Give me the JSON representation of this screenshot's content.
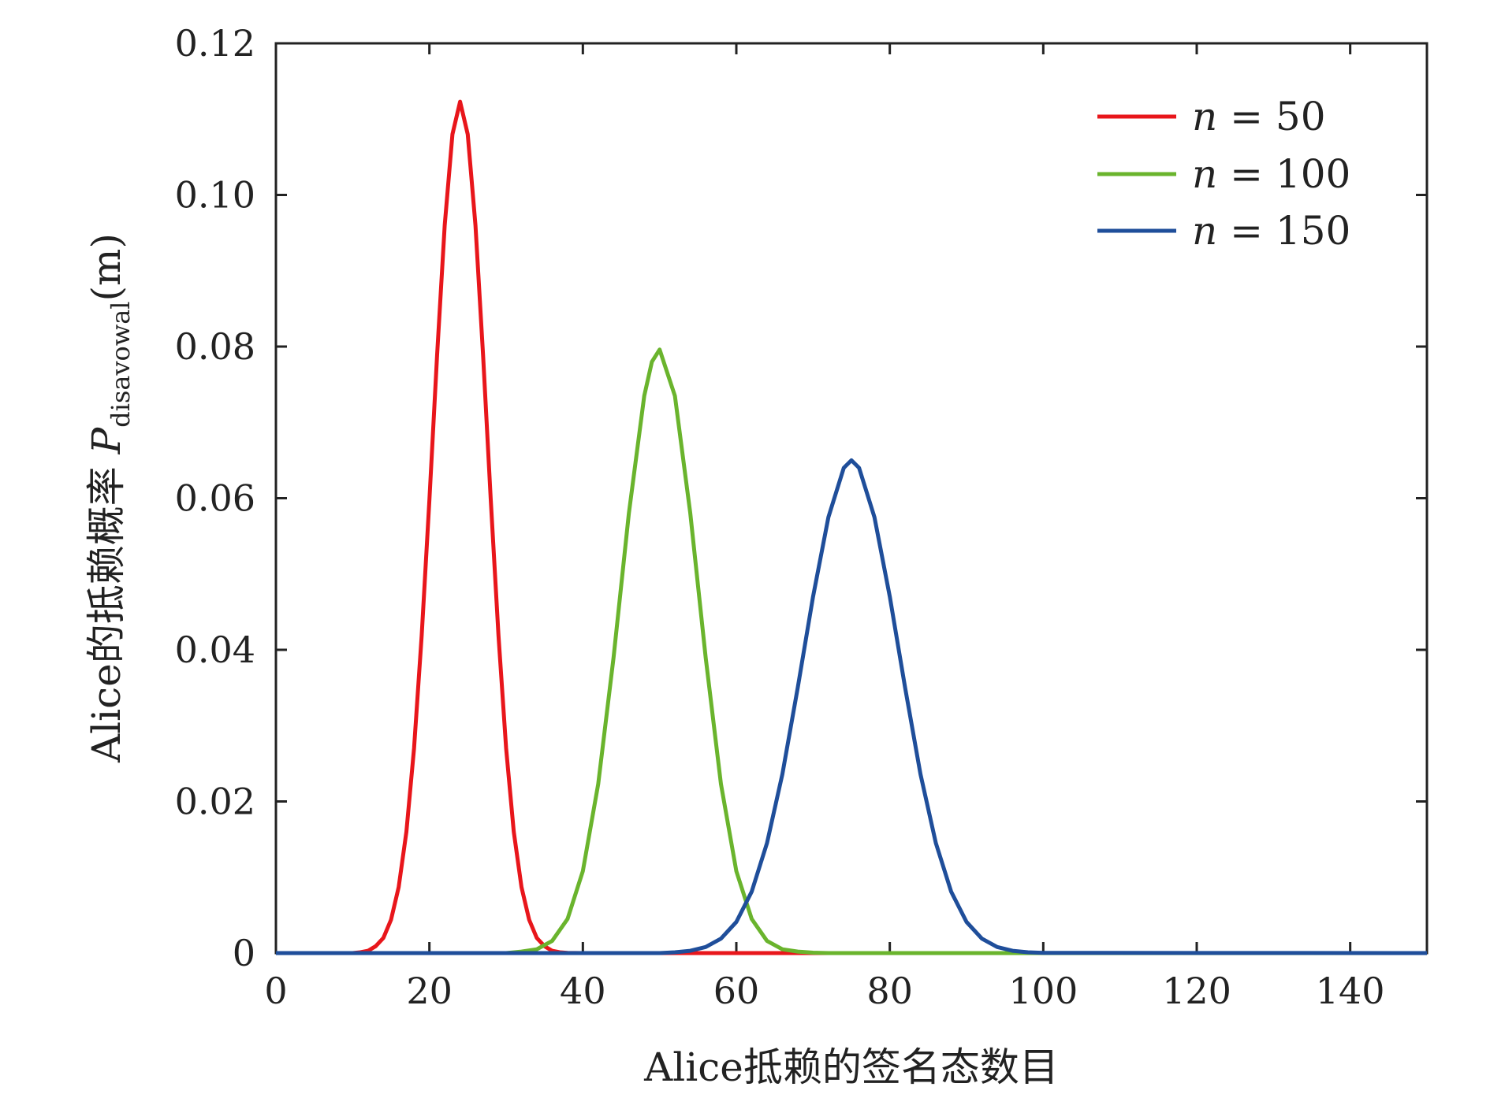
{
  "chart_data": {
    "type": "line",
    "xlabel": "Alice抵赖的签名态数目",
    "ylabel": {
      "prefix": "Alice的抵赖概率 ",
      "symbol": "P",
      "subscript": "disavowal",
      "arg": "(m)"
    },
    "xlim": [
      0,
      150
    ],
    "ylim": [
      0,
      0.12
    ],
    "xticks": [
      0,
      20,
      40,
      60,
      80,
      100,
      120,
      140
    ],
    "yticks": [
      0,
      0.02,
      0.04,
      0.06,
      0.08,
      0.1,
      0.12
    ],
    "xtick_labels": [
      "0",
      "20",
      "40",
      "60",
      "80",
      "100",
      "120",
      "140"
    ],
    "ytick_labels": [
      "0",
      "0.02",
      "0.04",
      "0.06",
      "0.08",
      "0.10",
      "0.12"
    ],
    "grid": false,
    "legend_position": "top-right",
    "series": [
      {
        "name": "n = 50",
        "legend_var": "n",
        "legend_eq": " = ",
        "legend_val": "50",
        "color": "#e8161b",
        "x": [
          0,
          10,
          11,
          12,
          13,
          14,
          15,
          16,
          17,
          18,
          19,
          20,
          21,
          22,
          23,
          24,
          25,
          26,
          27,
          28,
          29,
          30,
          31,
          32,
          33,
          34,
          35,
          36,
          37,
          38,
          40,
          150
        ],
        "y": [
          0,
          0,
          0.0001,
          0.0003,
          0.0009,
          0.002,
          0.0044,
          0.0087,
          0.016,
          0.027,
          0.0419,
          0.0598,
          0.0788,
          0.096,
          0.108,
          0.1123,
          0.108,
          0.096,
          0.0788,
          0.0598,
          0.0419,
          0.027,
          0.016,
          0.0087,
          0.0044,
          0.002,
          0.0009,
          0.0003,
          0.0001,
          3e-05,
          0,
          0
        ]
      },
      {
        "name": "n = 100",
        "legend_var": "n",
        "legend_eq": " = ",
        "legend_val": "100",
        "color": "#6ab42d",
        "x": [
          0,
          30,
          32,
          34,
          36,
          38,
          40,
          42,
          44,
          46,
          48,
          49,
          50,
          52,
          54,
          56,
          58,
          60,
          62,
          64,
          66,
          68,
          70,
          72,
          150
        ],
        "y": [
          0,
          0,
          0.0002,
          0.0005,
          0.0016,
          0.0045,
          0.0108,
          0.0223,
          0.039,
          0.058,
          0.0735,
          0.078,
          0.0796,
          0.0735,
          0.058,
          0.039,
          0.0223,
          0.0108,
          0.0045,
          0.0016,
          0.0005,
          0.0002,
          5e-05,
          0,
          0
        ]
      },
      {
        "name": "n = 150",
        "legend_var": "n",
        "legend_eq": " = ",
        "legend_val": "150",
        "color": "#1f4e9a",
        "x": [
          0,
          50,
          52,
          54,
          56,
          58,
          60,
          62,
          64,
          66,
          68,
          70,
          72,
          74,
          75,
          76,
          78,
          80,
          82,
          84,
          86,
          88,
          90,
          92,
          94,
          96,
          98,
          100,
          150
        ],
        "y": [
          0,
          0,
          0.0001,
          0.0003,
          0.0008,
          0.0019,
          0.0041,
          0.0081,
          0.0145,
          0.0236,
          0.035,
          0.047,
          0.0575,
          0.064,
          0.065,
          0.064,
          0.0575,
          0.047,
          0.035,
          0.0236,
          0.0145,
          0.0081,
          0.0041,
          0.0019,
          0.0008,
          0.0003,
          0.0001,
          3e-05,
          0
        ]
      }
    ]
  }
}
